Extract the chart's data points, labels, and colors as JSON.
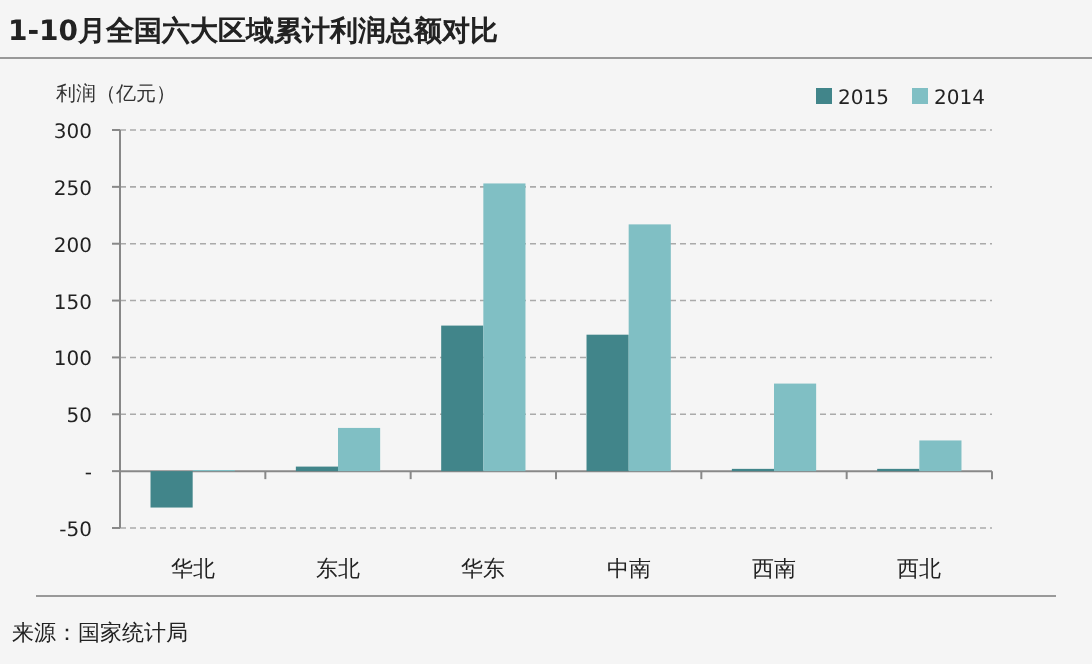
{
  "chart_data": {
    "type": "bar",
    "title": "1-10月全国六大区域累计利润总额对比",
    "ylabel": "利润（亿元）",
    "categories": [
      "华北",
      "东北",
      "华东",
      "中南",
      "西南",
      "西北"
    ],
    "series": [
      {
        "name": "2015",
        "color": "#41858a",
        "values": [
          -32,
          4,
          128,
          120,
          2,
          2
        ]
      },
      {
        "name": "2014",
        "color": "#80bfc4",
        "values": [
          1,
          38,
          253,
          217,
          77,
          27
        ]
      }
    ],
    "ylim": [
      -50,
      300
    ],
    "yticks": [
      -50,
      {
        "value": 0,
        "label": "-"
      },
      50,
      100,
      150,
      200,
      250,
      300
    ],
    "grid": "y",
    "legend": "top right",
    "annotations": [
      "来源：国家统计局"
    ]
  }
}
